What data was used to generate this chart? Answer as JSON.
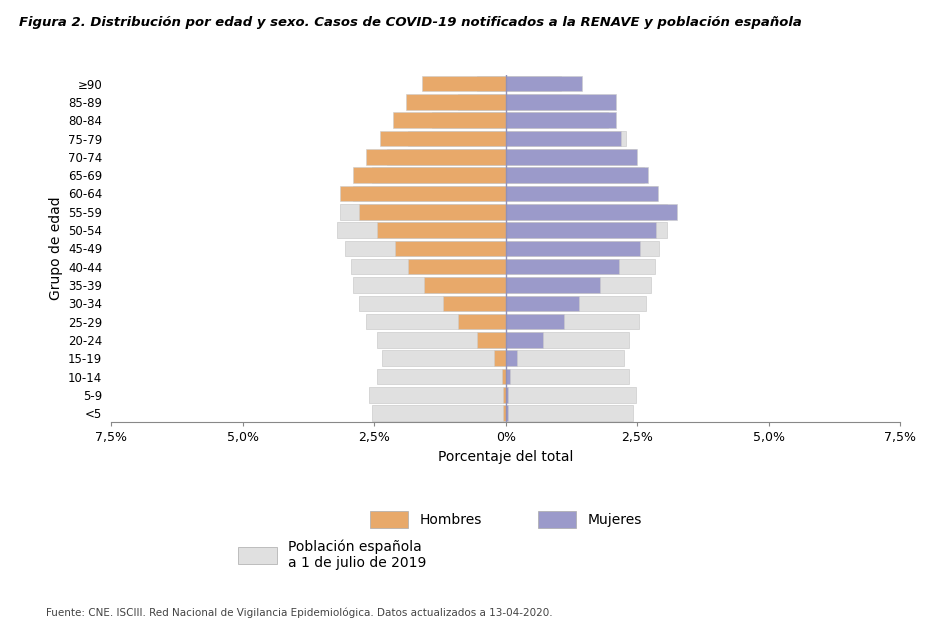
{
  "title": "Figura 2. Distribución por edad y sexo. Casos de COVID-19 notificados a la RENAVE y población española",
  "age_groups": [
    "<5",
    "5-9",
    "10-14",
    "15-19",
    "20-24",
    "25-29",
    "30-34",
    "35-39",
    "40-44",
    "45-49",
    "50-54",
    "55-59",
    "60-64",
    "65-69",
    "70-74",
    "75-79",
    "80-84",
    "85-89",
    "≥90"
  ],
  "hombres_covid": [
    0.05,
    0.05,
    0.08,
    0.22,
    0.55,
    0.9,
    1.2,
    1.55,
    1.85,
    2.1,
    2.45,
    2.8,
    3.15,
    2.9,
    2.65,
    2.4,
    2.15,
    1.9,
    1.6
  ],
  "mujeres_covid": [
    0.05,
    0.05,
    0.08,
    0.22,
    0.7,
    1.1,
    1.4,
    1.8,
    2.15,
    2.55,
    2.85,
    3.25,
    2.9,
    2.7,
    2.5,
    2.2,
    2.1,
    2.1,
    1.45
  ],
  "hombres_pobl": [
    2.55,
    2.6,
    2.45,
    2.35,
    2.45,
    2.65,
    2.8,
    2.9,
    2.95,
    3.05,
    3.2,
    3.15,
    2.9,
    2.55,
    2.25,
    1.85,
    1.4,
    0.9,
    0.55
  ],
  "mujeres_pobl": [
    2.42,
    2.48,
    2.34,
    2.24,
    2.34,
    2.53,
    2.67,
    2.77,
    2.83,
    2.92,
    3.07,
    3.06,
    2.87,
    2.62,
    2.48,
    2.28,
    1.94,
    1.4,
    1.05
  ],
  "color_hombres": "#E8A96A",
  "color_mujeres": "#9B9ACA",
  "color_pobl_bg": "#E0E0E0",
  "xlabel": "Porcentaje del total",
  "ylabel": "Grupo de edad",
  "xlim": 7.5,
  "xticks": [
    -7.5,
    -5.0,
    -2.5,
    0.0,
    2.5,
    5.0,
    7.5
  ],
  "xticklabels": [
    "7,5%",
    "5,0%",
    "2,5%",
    "0%",
    "2,5%",
    "5,0%",
    "7,5%"
  ],
  "source": "Fuente: CNE. ISCIII. Red Nacional de Vigilancia Epidemiológica. Datos actualizados a 13-04-2020.",
  "legend_hombres": "Hombres",
  "legend_mujeres": "Mujeres",
  "legend_pobl": "Población española\na 1 de julio de 2019",
  "vline_color": "#9090B8",
  "bg_color": "#FFFFFF"
}
